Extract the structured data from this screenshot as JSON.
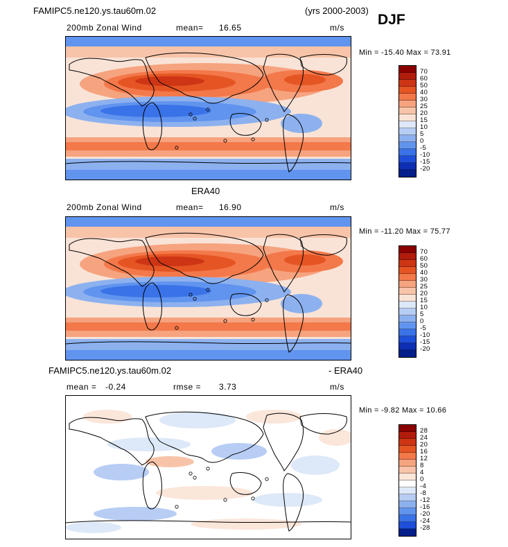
{
  "season": "DJF",
  "panels": [
    {
      "title_left": "FAMIPC5.ne120.ys.tau60m.02",
      "title_right": "(yrs 2000-2003)",
      "variable": "200mb Zonal Wind",
      "mean_label": "mean=",
      "mean_value": "16.65",
      "rmse_label": "",
      "rmse_value": "",
      "units": "m/s",
      "minmax": "Min = -15.40 Max = 73.91",
      "levels": [
        "70",
        "60",
        "50",
        "40",
        "30",
        "25",
        "20",
        "15",
        "10",
        "5",
        "0",
        "-5",
        "-10",
        "-15",
        "-20"
      ],
      "colors": [
        "#8b0000",
        "#b21c0c",
        "#cd3515",
        "#e55523",
        "#f3784a",
        "#f6a37f",
        "#f8c4a9",
        "#f9e3d6",
        "#dde8f8",
        "#b7cdf4",
        "#8db1ef",
        "#6194ee",
        "#3a72e8",
        "#1f4ed9",
        "#0e2fb3",
        "#041f8a"
      ]
    },
    {
      "title_center": "ERA40",
      "variable": "200mb Zonal Wind",
      "mean_label": "mean=",
      "mean_value": "16.90",
      "units": "m/s",
      "minmax": "Min = -11.20 Max = 75.77",
      "levels": [
        "70",
        "60",
        "50",
        "40",
        "30",
        "25",
        "20",
        "15",
        "10",
        "5",
        "0",
        "-5",
        "-10",
        "-15",
        "-20"
      ],
      "colors": [
        "#8b0000",
        "#b21c0c",
        "#cd3515",
        "#e55523",
        "#f3784a",
        "#f6a37f",
        "#f8c4a9",
        "#f9e3d6",
        "#dde8f8",
        "#b7cdf4",
        "#8db1ef",
        "#6194ee",
        "#3a72e8",
        "#1f4ed9",
        "#0e2fb3",
        "#041f8a"
      ]
    },
    {
      "title_left": "FAMIPC5.ne120.ys.tau60m.02",
      "title_right": "- ERA40",
      "mean_label": "mean =",
      "mean_value": "-0.24",
      "rmse_label": "rmse =",
      "rmse_value": "3.73",
      "units": "m/s",
      "minmax": "Min = -9.82 Max = 10.66",
      "levels": [
        "28",
        "24",
        "20",
        "16",
        "12",
        "8",
        "4",
        "0",
        "-4",
        "-8",
        "-12",
        "-16",
        "-20",
        "-24",
        "-28"
      ],
      "colors": [
        "#8b0000",
        "#b21c0c",
        "#cd3515",
        "#e55523",
        "#f3784a",
        "#f6a37f",
        "#f8c4a9",
        "#fbe6da",
        "#ffffff",
        "#dde8f8",
        "#b7cdf4",
        "#8db1ef",
        "#6194ee",
        "#3a72e8",
        "#1f4ed9",
        "#041f8a"
      ]
    }
  ]
}
